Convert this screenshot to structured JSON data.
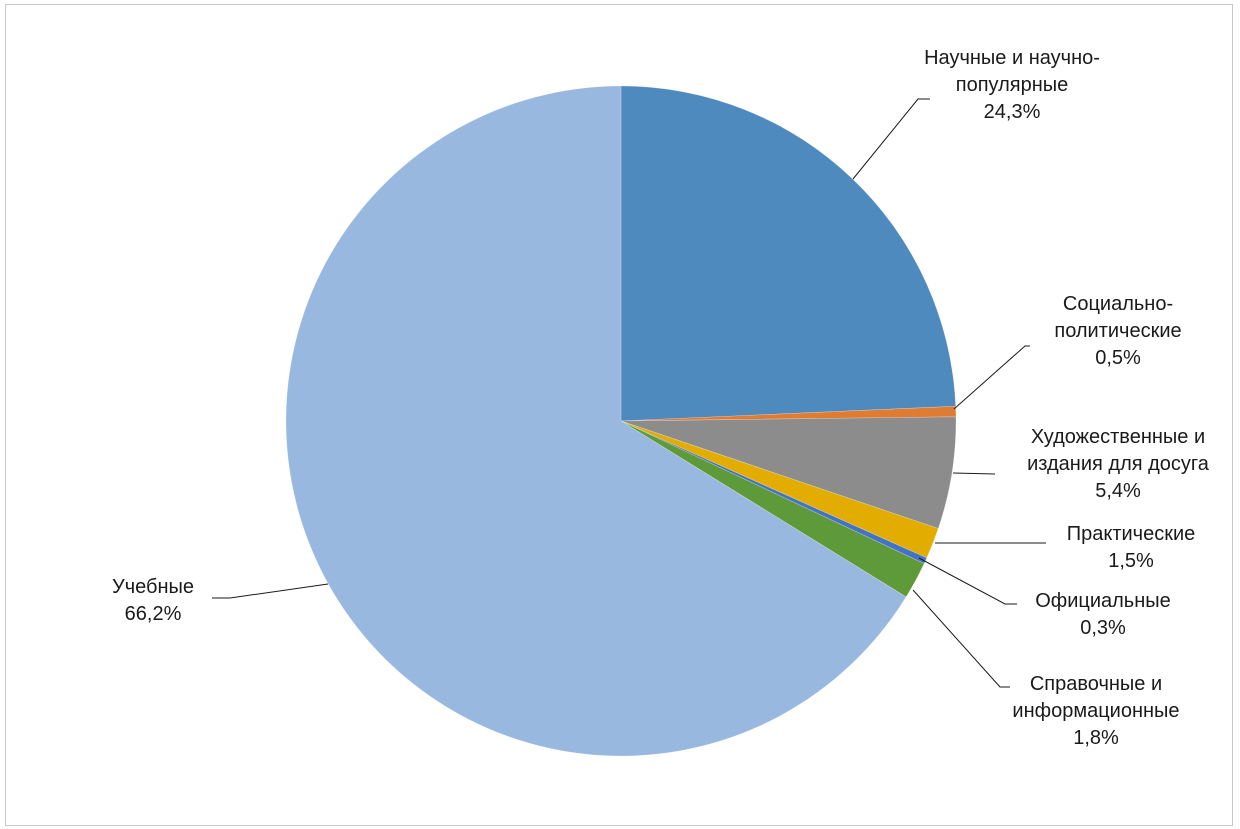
{
  "chart_data": {
    "type": "pie",
    "title": "",
    "start_angle_deg": 0,
    "direction": "clockwise",
    "slices": [
      {
        "label_lines": [
          "Научные и научно-",
          "популярные"
        ],
        "value_text": "24,3%",
        "value": 24.3,
        "color": "#4f8abe"
      },
      {
        "label_lines": [
          "Социально-",
          "политические"
        ],
        "value_text": "0,5%",
        "value": 0.5,
        "color": "#e07b32"
      },
      {
        "label_lines": [
          "Художественные и",
          "издания для досуга"
        ],
        "value_text": "5,4%",
        "value": 5.4,
        "color": "#8c8c8c"
      },
      {
        "label_lines": [
          "Практические"
        ],
        "value_text": "1,5%",
        "value": 1.5,
        "color": "#e2ad00"
      },
      {
        "label_lines": [
          "Официальные"
        ],
        "value_text": "0,3%",
        "value": 0.3,
        "color": "#4472c4"
      },
      {
        "label_lines": [
          "Справочные и",
          "информационные"
        ],
        "value_text": "1,8%",
        "value": 1.8,
        "color": "#5e9a3a"
      },
      {
        "label_lines": [
          "Учебные"
        ],
        "value_text": "66,2%",
        "value": 66.2,
        "color": "#98b8df"
      }
    ],
    "legend": "none",
    "data_labels": "outside-with-leader-lines"
  }
}
